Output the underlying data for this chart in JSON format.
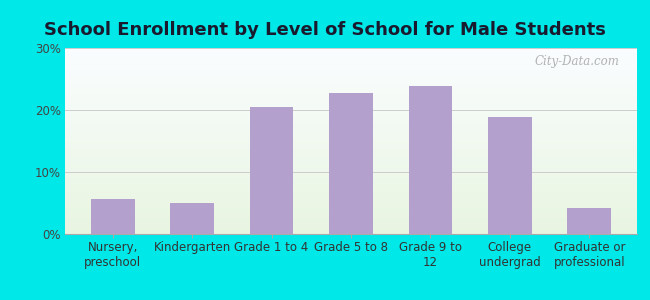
{
  "title": "School Enrollment by Level of School for Male Students",
  "categories": [
    "Nursery,\npreschool",
    "Kindergarten",
    "Grade 1 to 4",
    "Grade 5 to 8",
    "Grade 9 to\n12",
    "College\nundergrad",
    "Graduate or\nprofessional"
  ],
  "values": [
    5.7,
    5.0,
    20.5,
    22.8,
    23.8,
    18.8,
    4.2
  ],
  "bar_color": "#b4a0cc",
  "ylim": [
    0,
    30
  ],
  "yticks": [
    0,
    10,
    20,
    30
  ],
  "ytick_labels": [
    "0%",
    "10%",
    "20%",
    "30%"
  ],
  "background_outer": "#00e8e8",
  "title_fontsize": 13,
  "tick_fontsize": 8.5,
  "watermark": "City-Data.com"
}
